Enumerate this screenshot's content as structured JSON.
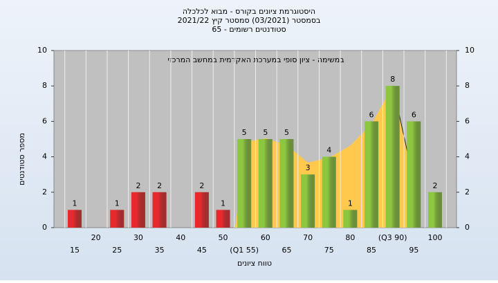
{
  "chart_data": {
    "type": "bar",
    "title": "היסטוגרמת ציונים בקורס - מבוא לכלכלה",
    "subtitle": "בסמסטר (03/2021) סמסטר קיץ 2021/22",
    "subtitle2": "סטודנטים רשומים - 65",
    "annotation": "במשימה - ציון סופי במערכת האקדמית במחשב המרכזי",
    "y_label": "מספר סטודנטים",
    "x_label": "טווח ציונים",
    "categories": [
      "15",
      "20",
      "25",
      "30",
      "35",
      "40",
      "45",
      "50",
      "(Q1 55)",
      "60",
      "65",
      "70",
      "75",
      "80",
      "85",
      "(Q3 90)",
      "95",
      "100"
    ],
    "values": [
      1,
      null,
      1,
      2,
      2,
      null,
      2,
      1,
      5,
      5,
      5,
      3,
      4,
      1,
      6,
      8,
      6,
      2
    ],
    "colors": [
      "#e8292b",
      "#e8292b",
      "#e8292b",
      "#e8292b",
      "#e8292b",
      "#e8292b",
      "#e8292b",
      "#e8292b",
      "#8dc63f",
      "#8dc63f",
      "#8dc63f",
      "#8dc63f",
      "#8dc63f",
      "#8dc63f",
      "#8dc63f",
      "#8dc63f",
      "#8dc63f",
      "#8dc63f"
    ],
    "ylim": [
      0,
      10
    ],
    "yticks": [
      0,
      2,
      4,
      6,
      8,
      10
    ],
    "y2lim": [
      0,
      10
    ],
    "y2ticks": [
      0,
      2,
      4,
      6,
      8,
      10
    ],
    "grid": true
  }
}
